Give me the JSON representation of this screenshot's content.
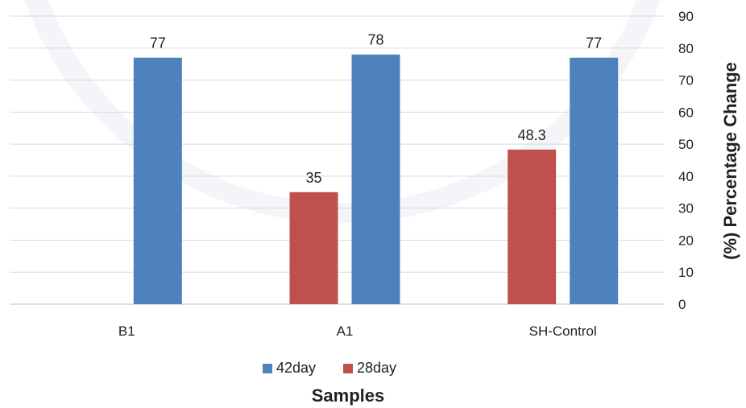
{
  "chart_data": {
    "type": "bar",
    "categories": [
      "B1",
      "A1",
      "SH-Control"
    ],
    "series": [
      {
        "name": "28day",
        "color": "#c0504d",
        "values": [
          null,
          35,
          48.3
        ],
        "labels": [
          "",
          "35",
          "48.3"
        ]
      },
      {
        "name": "42day",
        "color": "#4f81bd",
        "values": [
          77,
          78,
          77
        ],
        "labels": [
          "77",
          "78",
          "77"
        ]
      }
    ],
    "legend_order": [
      "42day",
      "28day"
    ],
    "xlabel": "Samples",
    "ylabel": "(%) Percentage Change",
    "ylim": [
      0,
      90
    ],
    "yticks": [
      0,
      10,
      20,
      30,
      40,
      50,
      60,
      70,
      80,
      90
    ],
    "y_axis_position": "right",
    "grid": true,
    "legend_position": "bottom"
  }
}
